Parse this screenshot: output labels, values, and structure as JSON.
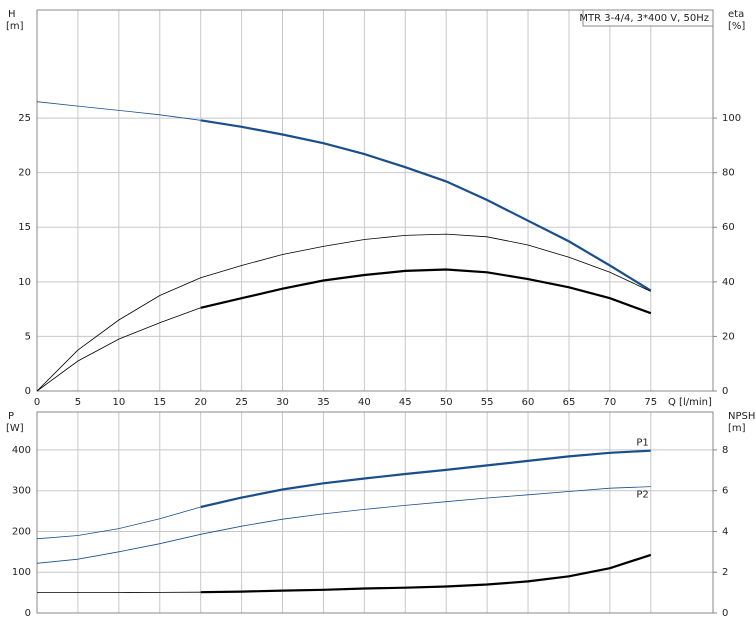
{
  "chart_data": [
    {
      "type": "line",
      "title": "MTR 3-4/4, 3*400 V, 50Hz",
      "y_label": "H",
      "y_unit": "[m]",
      "y2_label": "eta",
      "y2_unit": "[%]",
      "x_label": "Q [l/min]",
      "x": [
        0,
        5,
        10,
        15,
        20,
        25,
        30,
        35,
        40,
        45,
        50,
        55,
        60,
        65,
        70,
        75
      ],
      "xlim": [
        0,
        82.6
      ],
      "xticks": [
        0,
        5,
        10,
        15,
        20,
        25,
        30,
        35,
        40,
        45,
        50,
        55,
        60,
        65,
        70,
        75
      ],
      "ylim": [
        0,
        34.9
      ],
      "yticks": [
        0,
        5,
        10,
        15,
        20,
        25
      ],
      "y2lim": [
        0,
        139.6
      ],
      "y2ticks": [
        0,
        20,
        40,
        60,
        80,
        100
      ],
      "grid": true,
      "thick_from": 20,
      "series": [
        {
          "color": "#1a4f8c",
          "values": [
            26.5,
            26.1,
            25.7,
            25.3,
            24.8,
            24.2,
            23.5,
            22.7,
            21.7,
            20.5,
            19.2,
            17.5,
            15.6,
            13.7,
            11.5,
            9.2
          ]
        },
        {
          "color": "#000000",
          "axis": "y2",
          "values": [
            0,
            15,
            26,
            35,
            41.5,
            46,
            50,
            53,
            55.5,
            57,
            57.5,
            56.5,
            53.5,
            49,
            43.5,
            36.5
          ],
          "thin": true
        },
        {
          "color": "#000000",
          "axis": "y2",
          "values": [
            0,
            11,
            19,
            25,
            30.5,
            34,
            37.5,
            40.5,
            42.5,
            44,
            44.5,
            43.5,
            41,
            38,
            34,
            28.5
          ]
        }
      ]
    },
    {
      "type": "line",
      "y_label": "P",
      "y_unit": "[W]",
      "y2_label": "NPSH",
      "y2_unit": "[m]",
      "x": [
        0,
        5,
        10,
        15,
        20,
        25,
        30,
        35,
        40,
        45,
        50,
        55,
        60,
        65,
        70,
        75
      ],
      "xlim": [
        0,
        82.6
      ],
      "xticks": [
        0,
        5,
        10,
        15,
        20,
        25,
        30,
        35,
        40,
        45,
        50,
        55,
        60,
        65,
        70,
        75
      ],
      "ylim": [
        0,
        493
      ],
      "yticks": [
        0,
        100,
        200,
        300,
        400
      ],
      "y2lim": [
        0,
        9.86
      ],
      "y2ticks": [
        0,
        2,
        4,
        6,
        8
      ],
      "grid": true,
      "thick_from": 20,
      "series": [
        {
          "name": "P1",
          "color": "#1a4f8c",
          "values": [
            182,
            190,
            207,
            231,
            260,
            283,
            303,
            318,
            330,
            341,
            351,
            362,
            373,
            384,
            393,
            398
          ]
        },
        {
          "name": "P2",
          "color": "#1a4f8c",
          "values": [
            122,
            132,
            150,
            170,
            193,
            213,
            230,
            243,
            254,
            264,
            273,
            282,
            290,
            298,
            306,
            310
          ],
          "thin": true
        },
        {
          "color": "#000000",
          "axis": "y2",
          "values": [
            1.0,
            1.0,
            1.0,
            1.01,
            1.02,
            1.05,
            1.1,
            1.14,
            1.2,
            1.24,
            1.3,
            1.4,
            1.55,
            1.8,
            2.2,
            2.85
          ]
        }
      ]
    }
  ]
}
